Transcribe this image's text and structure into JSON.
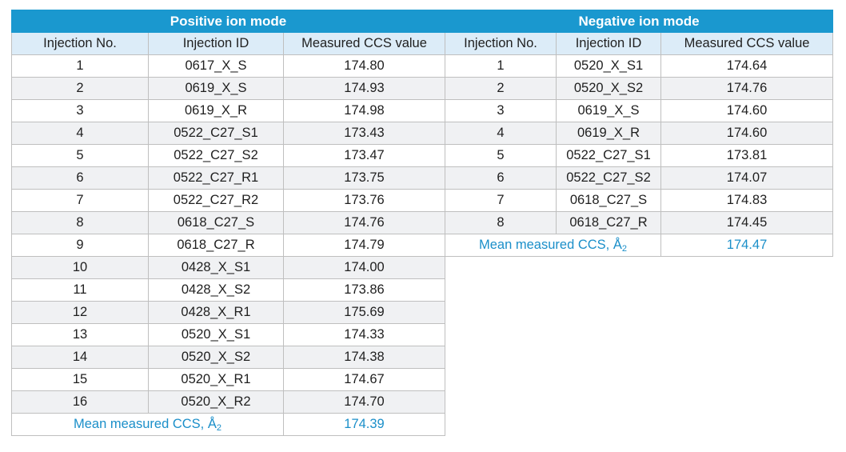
{
  "positive": {
    "title": "Positive ion mode",
    "headers": [
      "Injection No.",
      "Injection ID",
      "Measured CCS value"
    ],
    "rows": [
      [
        "1",
        "0617_X_S",
        "174.80"
      ],
      [
        "2",
        "0619_X_S",
        "174.93"
      ],
      [
        "3",
        "0619_X_R",
        "174.98"
      ],
      [
        "4",
        "0522_C27_S1",
        "173.43"
      ],
      [
        "5",
        "0522_C27_S2",
        "173.47"
      ],
      [
        "6",
        "0522_C27_R1",
        "173.75"
      ],
      [
        "7",
        "0522_C27_R2",
        "173.76"
      ],
      [
        "8",
        "0618_C27_S",
        "174.76"
      ],
      [
        "9",
        "0618_C27_R",
        "174.79"
      ],
      [
        "10",
        "0428_X_S1",
        "174.00"
      ],
      [
        "11",
        "0428_X_S2",
        "173.86"
      ],
      [
        "12",
        "0428_X_R1",
        "175.69"
      ],
      [
        "13",
        "0520_X_S1",
        "174.33"
      ],
      [
        "14",
        "0520_X_S2",
        "174.38"
      ],
      [
        "15",
        "0520_X_R1",
        "174.67"
      ],
      [
        "16",
        "0520_X_R2",
        "174.70"
      ]
    ],
    "mean_label": "Mean measured CCS, Å",
    "mean_sub": "2",
    "mean_value": "174.39"
  },
  "negative": {
    "title": "Negative ion mode",
    "headers": [
      "Injection No.",
      "Injection ID",
      "Measured CCS value"
    ],
    "rows": [
      [
        "1",
        "0520_X_S1",
        "174.64"
      ],
      [
        "2",
        "0520_X_S2",
        "174.76"
      ],
      [
        "3",
        "0619_X_S",
        "174.60"
      ],
      [
        "4",
        "0619_X_R",
        "174.60"
      ],
      [
        "5",
        "0522_C27_S1",
        "173.81"
      ],
      [
        "6",
        "0522_C27_S2",
        "174.07"
      ],
      [
        "7",
        "0618_C27_S",
        "174.83"
      ],
      [
        "8",
        "0618_C27_R",
        "174.45"
      ]
    ],
    "mean_label": "Mean measured CCS, Å",
    "mean_sub": "2",
    "mean_value": "174.47"
  },
  "colors": {
    "header_bg": "#1a98cf",
    "colhead_bg": "#dcecf8",
    "stripe_bg": "#f0f1f3",
    "mean_text": "#1b8fc9"
  }
}
